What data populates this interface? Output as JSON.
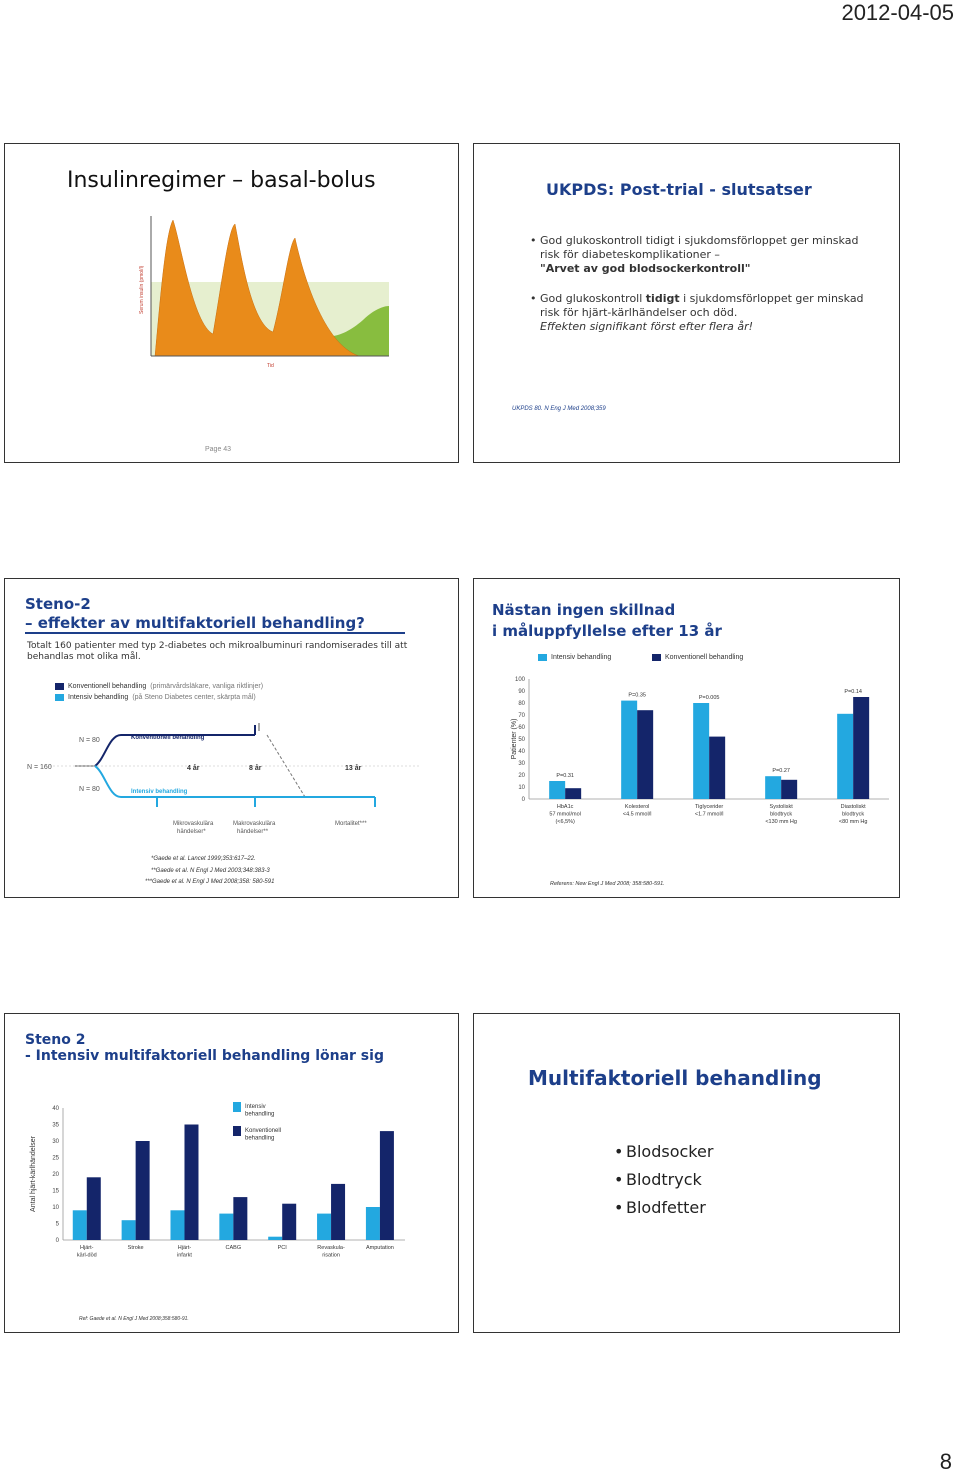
{
  "header": {
    "date": "2012-04-05"
  },
  "page_number": "8",
  "colors": {
    "intensive": "#23a8e0",
    "conventional": "#14256a",
    "title_blue": "#1d3f8a",
    "orange": "#e98b1a",
    "green": "#88bd3f"
  },
  "slide1": {
    "title": "Insulinregimer – basal-bolus",
    "ylabel": "Serum insulin (pmol/l)",
    "xlabel": "Tid",
    "page_label": "Page 43"
  },
  "slide2": {
    "title": "UKPDS: Post-trial - slutsatser",
    "bullet1_line1": "God glukoskontroll tidigt i sjukdomsförloppet ger minskad risk för diabeteskomplikationer –",
    "bullet1_line2": "\"Arvet av god blodsockerkontroll\"",
    "bullet2_pre": "God glukoskontroll ",
    "bullet2_strong": "tidigt",
    "bullet2_post": " i sjukdomsförloppet ger minskad risk för hjärt-kärlhändelser och död.",
    "bullet2_em": "Effekten signifikant först efter flera år!",
    "reference": "UKPDS 80. N Eng J Med 2008;359"
  },
  "slide3": {
    "title_line1": "Steno-2",
    "title_line2": "– effekter av multifaktoriell behandling?",
    "intro": "Totalt 160 patienter med typ 2-diabetes och mikroalbuminuri randomiserades till att behandlas mot olika mål.",
    "legend_conventional": "Konventionell behandling",
    "legend_conventional_note": "(primärvårdsläkare, vanliga riktlinjer)",
    "legend_intensive": "Intensiv behandling",
    "legend_intensive_note": "(på Steno Diabetes center, skärpta mål)",
    "n_total": "N = 160",
    "n_conv": "N = 80",
    "n_int": "N = 80",
    "label_conv": "Konventionell behandling",
    "label_int": "Intensiv behandling",
    "year4": "4 år",
    "year8": "8 år",
    "year13": "13 år",
    "outcome_micro_1": "Mikrovaskulära",
    "outcome_micro_2": "händelser*",
    "outcome_macro_1": "Makrovaskulära",
    "outcome_macro_2": "händelser**",
    "outcome_mort": "Mortalitet***",
    "ref1": "*Gaede et al. Lancet 1999;353:617–22.",
    "ref2": "**Gaede et al. N Engl J Med 2003;348:383-3",
    "ref3": "***Gaede et al. N Engl J Med 2008;358: 580-591"
  },
  "slide4": {
    "title_line1": "Nästan ingen skillnad",
    "title_line2": "i måluppfyllelse efter 13 år",
    "reference": "Referens: New Engl J Med 2008; 358:580-591."
  },
  "slide5": {
    "title_line1": "Steno 2",
    "title_line2": "- Intensiv multifaktoriell behandling lönar sig",
    "reference": "Ref: Gaede et al. N Engl J Med 2008;358:580-91."
  },
  "slide6": {
    "title": "Multifaktoriell behandling",
    "items": [
      "Blodsocker",
      "Blodtryck",
      "Blodfetter"
    ]
  },
  "chart_data": [
    {
      "type": "bar",
      "categories": [
        "HbA1c 57 mmol/mol (<6,5%)",
        "Kolesterol <4.5 mmol/l",
        "Tiglycerider <1.7 mmol/l",
        "Systoliskt blodtryck <130 mm Hg",
        "Diastoliskt blodtryck <80 mm Hg"
      ],
      "tick_labels": [
        [
          "HbA1c",
          "57 mmol/mol",
          "(<6,5%)"
        ],
        [
          "Kolesterol",
          "<4.5 mmol/l"
        ],
        [
          "Tiglycerider",
          "<1.7 mmol/l"
        ],
        [
          "Systoliskt",
          "blodtryck",
          "<130 mm Hg"
        ],
        [
          "Diastoliskt",
          "blodtryck",
          "<80 mm Hg"
        ]
      ],
      "series": [
        {
          "name": "Intensiv behandling",
          "values": [
            15,
            82,
            80,
            19,
            71
          ]
        },
        {
          "name": "Konventionell behandling",
          "values": [
            9,
            74,
            52,
            16,
            85
          ]
        }
      ],
      "annotations": [
        "P=0.31",
        "P=0.35",
        "P=0.005",
        "P=0.27",
        "P=0.14"
      ],
      "ylabel": "Patienter (%)",
      "ylim": [
        0,
        100
      ],
      "yticks": [
        0,
        10,
        20,
        30,
        40,
        50,
        60,
        70,
        80,
        90,
        100
      ],
      "legend": "top"
    },
    {
      "type": "bar",
      "categories": [
        "Hjärt-kärl-död",
        "Stroke",
        "Hjärt-infarkt",
        "CABG",
        "PCI",
        "Revaskula-risation",
        "Amputation"
      ],
      "tick_labels": [
        [
          "Hjärt-",
          "kärl-död"
        ],
        [
          "Stroke"
        ],
        [
          "Hjärt-",
          "infarkt"
        ],
        [
          "CABG"
        ],
        [
          "PCI"
        ],
        [
          "Revaskula-",
          "risation"
        ],
        [
          "Amputation"
        ]
      ],
      "series": [
        {
          "name": "Intensiv behandling",
          "values": [
            9,
            6,
            9,
            8,
            1,
            8,
            10
          ]
        },
        {
          "name": "Konventionell behandling",
          "values": [
            19,
            30,
            35,
            13,
            11,
            17,
            33
          ]
        }
      ],
      "legend_labels": [
        [
          "Intensiv",
          "behandling"
        ],
        [
          "Konventionell",
          "behandling"
        ]
      ],
      "ylabel": "Antal hjärt-kärlhändelser",
      "ylim": [
        0,
        40
      ],
      "yticks": [
        0,
        5,
        10,
        15,
        20,
        25,
        30,
        35,
        40
      ],
      "legend": "top-right"
    }
  ]
}
